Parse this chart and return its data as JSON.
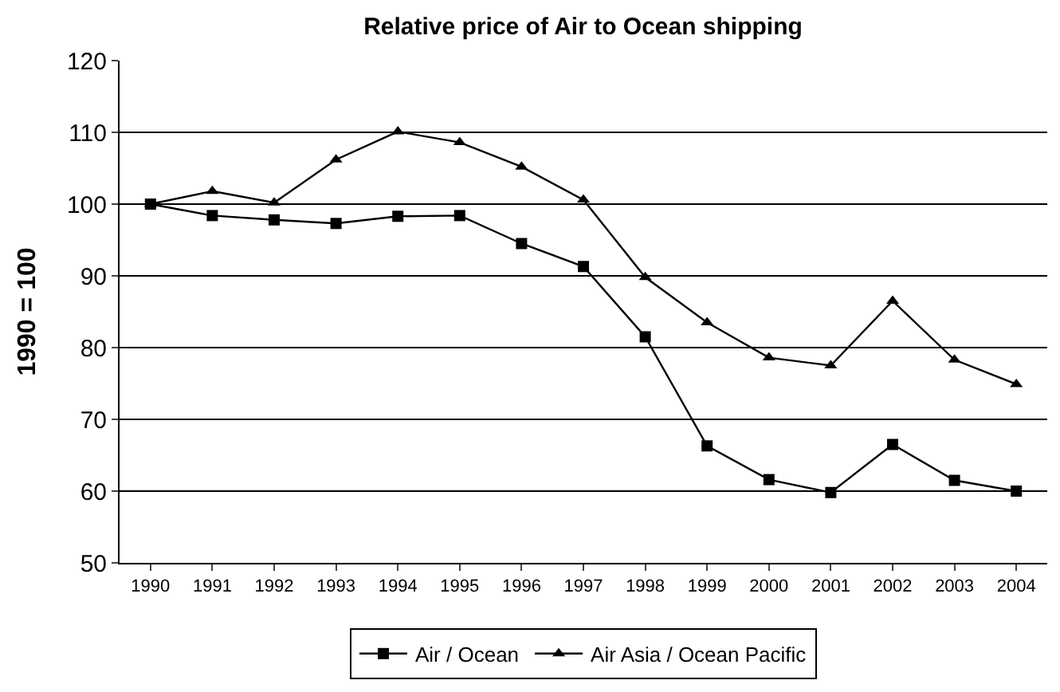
{
  "chart_data": {
    "type": "line",
    "title": "Relative price of Air to Ocean shipping",
    "ylabel": "1990 = 100",
    "categories": [
      "1990",
      "1991",
      "1992",
      "1993",
      "1994",
      "1995",
      "1996",
      "1997",
      "1998",
      "1999",
      "2000",
      "2001",
      "2002",
      "2003",
      "2004"
    ],
    "series": [
      {
        "name": "Air / Ocean",
        "color": "#000000",
        "marker": "square",
        "values": [
          100,
          98.4,
          97.8,
          97.3,
          98.3,
          98.4,
          94.5,
          91.3,
          81.5,
          66.3,
          61.6,
          59.8,
          66.5,
          61.5,
          60.0
        ]
      },
      {
        "name": "Air Asia / Ocean Pacific",
        "color": "#000000",
        "marker": "triangle",
        "values": [
          100,
          101.8,
          100.2,
          106.2,
          110.1,
          108.6,
          105.2,
          100.6,
          89.8,
          83.5,
          78.6,
          77.5,
          86.5,
          78.3,
          74.9
        ]
      }
    ],
    "ylim": [
      50,
      120
    ],
    "yticks": [
      50,
      60,
      70,
      80,
      90,
      100,
      110,
      120
    ],
    "grid": "y",
    "legend": "bottom",
    "line_style": "solid"
  }
}
